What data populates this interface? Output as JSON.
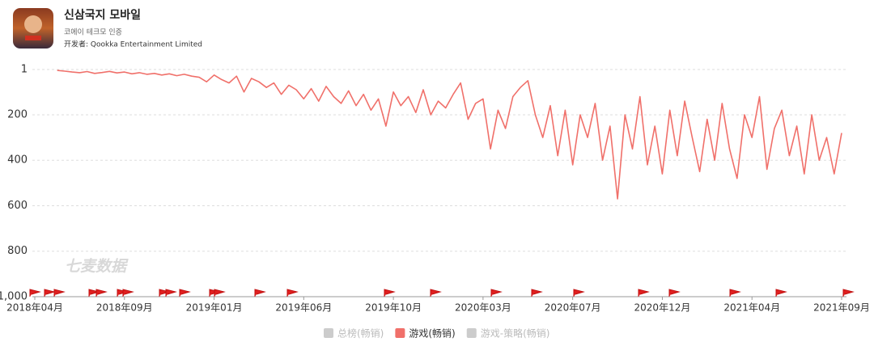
{
  "header": {
    "title": "신삼국지 모바일",
    "subtitle": "코에이 테크모 인증",
    "developer": "开发者: Qookka Entertainment Limited"
  },
  "chart_data": {
    "type": "line",
    "watermark": "七麦数据",
    "categories": [
      "2018年04月",
      null,
      null,
      null,
      null,
      null,
      null,
      null,
      null,
      null,
      null,
      null,
      "2018年09月",
      null,
      null,
      null,
      null,
      null,
      null,
      null,
      null,
      null,
      null,
      null,
      "2019年01月",
      null,
      null,
      null,
      null,
      null,
      null,
      null,
      null,
      null,
      null,
      null,
      "2019年06月",
      null,
      null,
      null,
      null,
      null,
      null,
      null,
      null,
      null,
      null,
      null,
      "2019年10月",
      null,
      null,
      null,
      null,
      null,
      null,
      null,
      null,
      null,
      null,
      null,
      "2020年03月",
      null,
      null,
      null,
      null,
      null,
      null,
      null,
      null,
      null,
      null,
      null,
      "2020年07月",
      null,
      null,
      null,
      null,
      null,
      null,
      null,
      null,
      null,
      null,
      null,
      "2020年12月",
      null,
      null,
      null,
      null,
      null,
      null,
      null,
      null,
      null,
      null,
      null,
      "2021年04月",
      null,
      null,
      null,
      null,
      null,
      null,
      null,
      null,
      null,
      null,
      null,
      "2021年09月"
    ],
    "series": [
      {
        "name": "游戏(畅销)",
        "color": "#f0706a",
        "values": [
          null,
          null,
          null,
          5,
          8,
          12,
          15,
          10,
          18,
          14,
          9,
          16,
          12,
          20,
          15,
          22,
          18,
          25,
          20,
          28,
          22,
          30,
          35,
          55,
          25,
          45,
          60,
          30,
          100,
          40,
          55,
          80,
          60,
          110,
          70,
          90,
          130,
          85,
          140,
          75,
          120,
          150,
          95,
          160,
          110,
          180,
          130,
          250,
          100,
          160,
          120,
          190,
          90,
          200,
          140,
          170,
          110,
          60,
          220,
          150,
          130,
          350,
          180,
          260,
          120,
          80,
          50,
          200,
          300,
          160,
          380,
          180,
          420,
          200,
          300,
          150,
          400,
          250,
          570,
          200,
          350,
          120,
          420,
          250,
          460,
          180,
          380,
          140,
          300,
          450,
          220,
          400,
          150,
          350,
          480,
          200,
          300,
          120,
          440,
          260,
          180,
          380,
          250,
          460,
          200,
          400,
          300,
          460,
          280
        ]
      }
    ],
    "inactive_series": [
      {
        "name": "总榜(畅销)",
        "color": "#cccccc"
      },
      {
        "name": "游戏-策略(畅销)",
        "color": "#cccccc"
      }
    ],
    "ylim": [
      1000,
      1
    ],
    "yticks": [
      1,
      200,
      400,
      600,
      800,
      {
        "value": 1000,
        "label": "1,000"
      }
    ],
    "grid": true
  }
}
